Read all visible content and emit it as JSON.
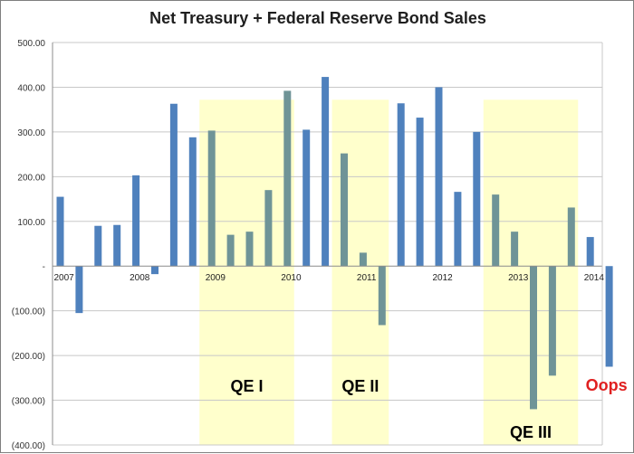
{
  "chart_data": {
    "type": "bar",
    "title": "Net Treasury + Federal Reserve Bond Sales",
    "xlabel": "",
    "ylabel": "",
    "ylim": [
      -400,
      500
    ],
    "yticks": [
      500,
      400,
      300,
      200,
      100,
      0,
      -100,
      -200,
      -300,
      -400
    ],
    "ytick_labels": [
      "500.00",
      "400.00",
      "300.00",
      "200.00",
      "100.00",
      "-",
      "(100.00)",
      "(200.00)",
      "(300.00)",
      "(400.00)"
    ],
    "grid": true,
    "legend": "none",
    "x_labels": [
      {
        "label": "2007",
        "index": 0
      },
      {
        "label": "2008",
        "index": 4
      },
      {
        "label": "2009",
        "index": 8
      },
      {
        "label": "2010",
        "index": 12
      },
      {
        "label": "2011",
        "index": 16
      },
      {
        "label": "2012",
        "index": 20
      },
      {
        "label": "2013",
        "index": 24
      },
      {
        "label": "2014",
        "index": 28
      }
    ],
    "values": [
      155,
      -105,
      90,
      92,
      203,
      -18,
      363,
      288,
      303,
      70,
      77,
      170,
      392,
      305,
      423,
      252,
      30,
      -132,
      364,
      332,
      400,
      166,
      300,
      160,
      77,
      -320,
      -245,
      131,
      65,
      -225
    ],
    "bands": [
      {
        "label": "QE I",
        "start": 8,
        "end": 12,
        "label_color": "#000000"
      },
      {
        "label": "QE II",
        "start": 15,
        "end": 17,
        "label_color": "#000000"
      },
      {
        "label": "QE III",
        "start": 23,
        "end": 27,
        "label_color": "#000000"
      }
    ],
    "annotation": {
      "text": "Oops",
      "color": "#e02020",
      "index": 29
    },
    "colors": {
      "bar": "#4f81bd",
      "bar_in_band": "#6f9497",
      "band_fill": "#ffffcc",
      "grid": "#c8c8c8",
      "axis": "#8c8c8c"
    }
  }
}
